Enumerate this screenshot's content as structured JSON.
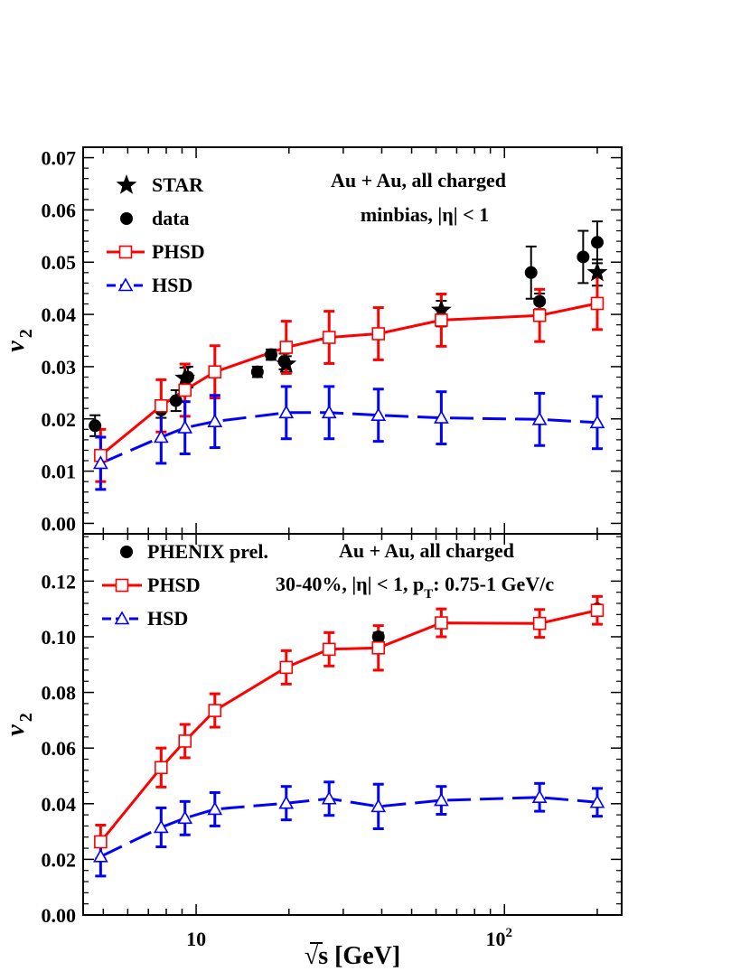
{
  "chart_data": [
    {
      "panel": "top",
      "type": "line",
      "ylabel": "v",
      "ylabel_sub": "2",
      "x_scale": "log",
      "xlim": [
        4.3,
        240
      ],
      "ylim": [
        -0.002,
        0.072
      ],
      "y_ticks": [
        0.0,
        0.01,
        0.02,
        0.03,
        0.04,
        0.05,
        0.06,
        0.07
      ],
      "y_tick_labels": [
        "0.00",
        "0.01",
        "0.02",
        "0.03",
        "0.04",
        "0.05",
        "0.06",
        "0.07"
      ],
      "annotation_lines": [
        "Au + Au, all charged",
        "minbias, |η| < 1"
      ],
      "series": [
        {
          "name": "STAR",
          "marker": "star",
          "color": "#000000",
          "points": [
            {
              "x": 9.2,
              "y": 0.0278,
              "err": 0.002
            },
            {
              "x": 19.6,
              "y": 0.0305,
              "err": 0.0015
            },
            {
              "x": 62.4,
              "y": 0.0408,
              "err": 0.0018
            },
            {
              "x": 200,
              "y": 0.048,
              "err": 0.0025
            }
          ]
        },
        {
          "name": "data",
          "marker": "circle",
          "color": "#000000",
          "points": [
            {
              "x": 4.7,
              "y": 0.0187,
              "err": 0.002
            },
            {
              "x": 7.7,
              "y": 0.0217,
              "err": 0.0015
            },
            {
              "x": 8.6,
              "y": 0.0235,
              "err": 0.002
            },
            {
              "x": 9.4,
              "y": 0.028,
              "err": 0.002
            },
            {
              "x": 15.8,
              "y": 0.029,
              "err": 0.001
            },
            {
              "x": 17.5,
              "y": 0.0323,
              "err": 0.001
            },
            {
              "x": 19.3,
              "y": 0.031,
              "err": 0.0015
            },
            {
              "x": 62.4,
              "y": 0.0392,
              "err": 0.0015
            },
            {
              "x": 122,
              "y": 0.048,
              "err": 0.005
            },
            {
              "x": 130,
              "y": 0.0425,
              "err": 0.0015
            },
            {
              "x": 180,
              "y": 0.051,
              "err": 0.005
            },
            {
              "x": 200,
              "y": 0.0538,
              "err": 0.004
            }
          ]
        },
        {
          "name": "PHSD",
          "marker": "open-square",
          "color": "#ff0000",
          "line": "solid",
          "points": [
            {
              "x": 4.9,
              "y": 0.013,
              "err": 0.005
            },
            {
              "x": 7.7,
              "y": 0.0225,
              "err": 0.005
            },
            {
              "x": 9.2,
              "y": 0.0255,
              "err": 0.005
            },
            {
              "x": 11.5,
              "y": 0.029,
              "err": 0.005
            },
            {
              "x": 19.6,
              "y": 0.0337,
              "err": 0.005
            },
            {
              "x": 27,
              "y": 0.0356,
              "err": 0.005
            },
            {
              "x": 39,
              "y": 0.0363,
              "err": 0.005
            },
            {
              "x": 62.4,
              "y": 0.0389,
              "err": 0.005
            },
            {
              "x": 130,
              "y": 0.0398,
              "err": 0.005
            },
            {
              "x": 200,
              "y": 0.0421,
              "err": 0.005
            }
          ]
        },
        {
          "name": "HSD",
          "marker": "open-triangle",
          "color": "#0000ff",
          "line": "dashed",
          "points": [
            {
              "x": 4.9,
              "y": 0.0115,
              "err": 0.005
            },
            {
              "x": 7.7,
              "y": 0.0165,
              "err": 0.005
            },
            {
              "x": 9.2,
              "y": 0.0183,
              "err": 0.005
            },
            {
              "x": 11.5,
              "y": 0.0195,
              "err": 0.005
            },
            {
              "x": 19.6,
              "y": 0.0212,
              "err": 0.005
            },
            {
              "x": 27,
              "y": 0.0212,
              "err": 0.005
            },
            {
              "x": 39,
              "y": 0.0207,
              "err": 0.005
            },
            {
              "x": 62.4,
              "y": 0.0202,
              "err": 0.005
            },
            {
              "x": 130,
              "y": 0.0199,
              "err": 0.005
            },
            {
              "x": 200,
              "y": 0.0193,
              "err": 0.005
            }
          ]
        }
      ]
    },
    {
      "panel": "bottom",
      "type": "line",
      "ylabel": "v",
      "ylabel_sub": "2",
      "xlabel": "√s  [GeV]",
      "x_scale": "log",
      "xlim": [
        4.3,
        240
      ],
      "ylim": [
        0.0,
        0.137
      ],
      "x_ticks": [
        10,
        100
      ],
      "x_tick_labels": [
        "10",
        "10",
        "2"
      ],
      "y_ticks": [
        0.0,
        0.02,
        0.04,
        0.06,
        0.08,
        0.1,
        0.12
      ],
      "y_tick_labels": [
        "0.00",
        "0.02",
        "0.04",
        "0.06",
        "0.08",
        "0.10",
        "0.12"
      ],
      "annotation_lines": [
        "Au + Au, all charged",
        "30-40%, |η| < 1, p",
        "T",
        ": 0.75-1 GeV/c"
      ],
      "series": [
        {
          "name": "PHENIX prel.",
          "marker": "circle",
          "color": "#000000",
          "points": [
            {
              "x": 39,
              "y": 0.1,
              "err": 0.0015
            },
            {
              "x": 62.4,
              "y": 0.105,
              "err": 0.0015
            },
            {
              "x": 200,
              "y": 0.11,
              "err": 0.0015
            }
          ]
        },
        {
          "name": "PHSD",
          "marker": "open-square",
          "color": "#ff0000",
          "line": "solid",
          "points": [
            {
              "x": 4.9,
              "y": 0.0263,
              "err": 0.006
            },
            {
              "x": 7.7,
              "y": 0.053,
              "err": 0.007
            },
            {
              "x": 9.2,
              "y": 0.0625,
              "err": 0.006
            },
            {
              "x": 11.5,
              "y": 0.0735,
              "err": 0.006
            },
            {
              "x": 19.6,
              "y": 0.089,
              "err": 0.006
            },
            {
              "x": 27,
              "y": 0.0955,
              "err": 0.006
            },
            {
              "x": 39,
              "y": 0.096,
              "err": 0.008
            },
            {
              "x": 62.4,
              "y": 0.105,
              "err": 0.005
            },
            {
              "x": 130,
              "y": 0.1048,
              "err": 0.005
            },
            {
              "x": 200,
              "y": 0.1095,
              "err": 0.005
            }
          ]
        },
        {
          "name": "HSD",
          "marker": "open-triangle",
          "color": "#0000ff",
          "line": "dashed",
          "points": [
            {
              "x": 4.9,
              "y": 0.021,
              "err": 0.007
            },
            {
              "x": 7.7,
              "y": 0.0315,
              "err": 0.007
            },
            {
              "x": 9.2,
              "y": 0.0348,
              "err": 0.006
            },
            {
              "x": 11.5,
              "y": 0.038,
              "err": 0.006
            },
            {
              "x": 19.6,
              "y": 0.0402,
              "err": 0.006
            },
            {
              "x": 27,
              "y": 0.0418,
              "err": 0.006
            },
            {
              "x": 39,
              "y": 0.039,
              "err": 0.008
            },
            {
              "x": 62.4,
              "y": 0.0412,
              "err": 0.005
            },
            {
              "x": 130,
              "y": 0.0423,
              "err": 0.005
            },
            {
              "x": 200,
              "y": 0.0405,
              "err": 0.005
            }
          ]
        }
      ]
    }
  ]
}
